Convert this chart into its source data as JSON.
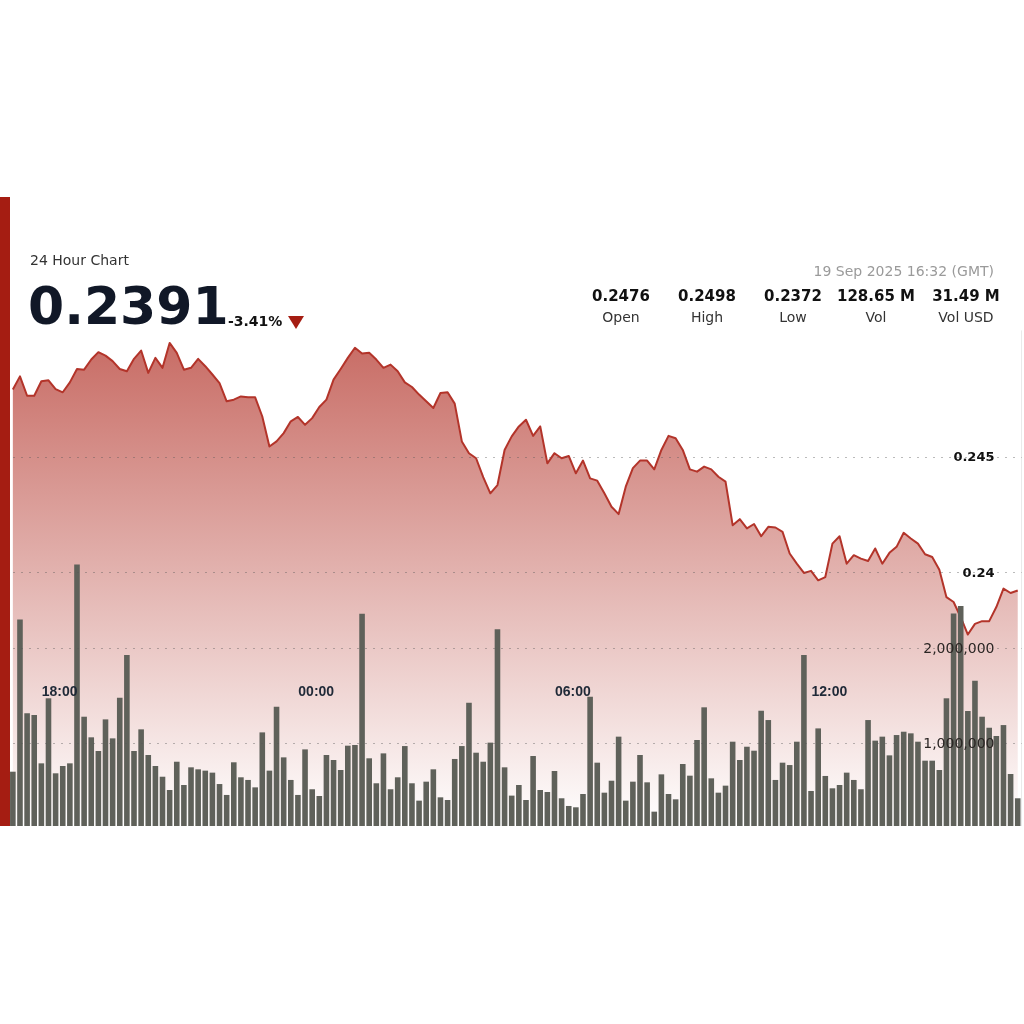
{
  "chart_data": {
    "type": "area",
    "subtitle": "24 Hour Chart",
    "annotations": [
      "0.2391",
      "-3.41%",
      "19 Sep 2025 16:32 (GMT)",
      "0.2476",
      "Open",
      "0.2498",
      "High",
      "0.2372",
      "Low",
      "128.65 M",
      "Vol",
      "31.49 M",
      "Vol USD"
    ],
    "x": [
      "2025-09-18T16:55",
      "2025-09-18T17:05",
      "2025-09-18T17:15",
      "2025-09-18T17:25",
      "2025-09-18T17:35",
      "2025-09-18T17:45",
      "2025-09-18T17:55",
      "2025-09-18T18:05",
      "2025-09-18T18:15",
      "2025-09-18T18:25",
      "2025-09-18T18:35",
      "2025-09-18T18:45",
      "2025-09-18T18:55",
      "2025-09-18T19:05",
      "2025-09-18T19:15",
      "2025-09-18T19:25",
      "2025-09-18T19:35",
      "2025-09-18T19:45",
      "2025-09-18T19:55",
      "2025-09-18T20:05",
      "2025-09-18T20:15",
      "2025-09-18T20:25",
      "2025-09-18T20:35",
      "2025-09-18T20:45",
      "2025-09-18T20:55",
      "2025-09-18T21:05",
      "2025-09-18T21:15",
      "2025-09-18T21:25",
      "2025-09-18T21:35",
      "2025-09-18T21:45",
      "2025-09-18T21:55",
      "2025-09-18T22:05",
      "2025-09-18T22:15",
      "2025-09-18T22:25",
      "2025-09-18T22:35",
      "2025-09-18T22:45",
      "2025-09-18T22:55",
      "2025-09-18T23:05",
      "2025-09-18T23:15",
      "2025-09-18T23:25",
      "2025-09-18T23:35",
      "2025-09-18T23:45",
      "2025-09-18T23:55",
      "2025-09-19T00:05",
      "2025-09-19T00:15",
      "2025-09-19T00:25",
      "2025-09-19T00:35",
      "2025-09-19T00:45",
      "2025-09-19T00:55",
      "2025-09-19T01:05",
      "2025-09-19T01:15",
      "2025-09-19T01:25",
      "2025-09-19T01:35",
      "2025-09-19T01:45",
      "2025-09-19T01:55",
      "2025-09-19T02:05",
      "2025-09-19T02:15",
      "2025-09-19T02:25",
      "2025-09-19T02:35",
      "2025-09-19T02:45",
      "2025-09-19T02:55",
      "2025-09-19T03:05",
      "2025-09-19T03:15",
      "2025-09-19T03:25",
      "2025-09-19T03:35",
      "2025-09-19T03:45",
      "2025-09-19T03:55",
      "2025-09-19T04:05",
      "2025-09-19T04:15",
      "2025-09-19T04:25",
      "2025-09-19T04:35",
      "2025-09-19T04:45",
      "2025-09-19T04:55",
      "2025-09-19T05:05",
      "2025-09-19T05:15",
      "2025-09-19T05:25",
      "2025-09-19T05:35",
      "2025-09-19T05:45",
      "2025-09-19T05:55",
      "2025-09-19T06:05",
      "2025-09-19T06:15",
      "2025-09-19T06:25",
      "2025-09-19T06:35",
      "2025-09-19T06:45",
      "2025-09-19T06:55",
      "2025-09-19T07:05",
      "2025-09-19T07:15",
      "2025-09-19T07:25",
      "2025-09-19T07:35",
      "2025-09-19T07:45",
      "2025-09-19T07:55",
      "2025-09-19T08:05",
      "2025-09-19T08:15",
      "2025-09-19T08:25",
      "2025-09-19T08:35",
      "2025-09-19T08:45",
      "2025-09-19T08:55",
      "2025-09-19T09:05",
      "2025-09-19T09:15",
      "2025-09-19T09:25",
      "2025-09-19T09:35",
      "2025-09-19T09:45",
      "2025-09-19T09:55",
      "2025-09-19T10:05",
      "2025-09-19T10:15",
      "2025-09-19T10:25",
      "2025-09-19T10:35",
      "2025-09-19T10:45",
      "2025-09-19T10:55",
      "2025-09-19T11:05",
      "2025-09-19T11:15",
      "2025-09-19T11:25",
      "2025-09-19T11:35",
      "2025-09-19T11:45",
      "2025-09-19T11:55",
      "2025-09-19T12:05",
      "2025-09-19T12:15",
      "2025-09-19T12:25",
      "2025-09-19T12:35",
      "2025-09-19T12:45",
      "2025-09-19T12:55",
      "2025-09-19T13:05",
      "2025-09-19T13:15",
      "2025-09-19T13:25",
      "2025-09-19T13:35",
      "2025-09-19T13:45",
      "2025-09-19T13:55",
      "2025-09-19T14:05",
      "2025-09-19T14:15",
      "2025-09-19T14:25",
      "2025-09-19T14:35",
      "2025-09-19T14:45",
      "2025-09-19T14:55",
      "2025-09-19T15:05",
      "2025-09-19T15:15",
      "2025-09-19T15:25",
      "2025-09-19T15:35",
      "2025-09-19T15:45",
      "2025-09-19T15:55",
      "2025-09-19T16:05",
      "2025-09-19T16:15",
      "2025-09-19T16:25"
    ],
    "series": [
      {
        "color": "#b3342a",
        "values": [
          0.24792,
          0.24849,
          0.24765,
          0.24765,
          0.24828,
          0.24832,
          0.24794,
          0.2478,
          0.24823,
          0.24881,
          0.24878,
          0.24922,
          0.24954,
          0.24939,
          0.24915,
          0.24881,
          0.24871,
          0.24925,
          0.24961,
          0.24864,
          0.24929,
          0.24886,
          0.24994,
          0.24951,
          0.24878,
          0.24886,
          0.24925,
          0.24893,
          0.24857,
          0.2482,
          0.24741,
          0.24748,
          0.24762,
          0.24758,
          0.24758,
          0.24675,
          0.24545,
          0.24567,
          0.24603,
          0.24654,
          0.24673,
          0.24639,
          0.24668,
          0.24716,
          0.24748,
          0.24835,
          0.24881,
          0.24929,
          0.24973,
          0.24948,
          0.24951,
          0.24922,
          0.24886,
          0.249,
          0.24871,
          0.24823,
          0.24803,
          0.2477,
          0.24741,
          0.24712,
          0.24777,
          0.2478,
          0.24731,
          0.24567,
          0.24516,
          0.24494,
          0.24412,
          0.24342,
          0.24378,
          0.2453,
          0.24589,
          0.24632,
          0.24661,
          0.24591,
          0.24632,
          0.24472,
          0.24516,
          0.24494,
          0.24504,
          0.24429,
          0.24484,
          0.24407,
          0.24397,
          0.24342,
          0.24284,
          0.24252,
          0.24371,
          0.24451,
          0.24484,
          0.24484,
          0.24446,
          0.2453,
          0.24591,
          0.24581,
          0.2453,
          0.24446,
          0.24436,
          0.24458,
          0.24446,
          0.24414,
          0.24393,
          0.24204,
          0.2423,
          0.2419,
          0.24209,
          0.24156,
          0.24197,
          0.24194,
          0.24175,
          0.24081,
          0.24037,
          0.23997,
          0.24006,
          0.23965,
          0.23979,
          0.24124,
          0.24156,
          0.24037,
          0.24074,
          0.24059,
          0.24049,
          0.24103,
          0.24037,
          0.24084,
          0.2411,
          0.24171,
          0.24146,
          0.24124,
          0.24078,
          0.24066,
          0.24011,
          0.23892,
          0.23871,
          0.23805,
          0.2373,
          0.23776,
          0.23788,
          0.23788,
          0.23849,
          0.23929,
          0.2391,
          0.23921
        ]
      },
      {
        "type": "bar",
        "axis": "y2",
        "color": "#5f615a",
        "values": [
          698000,
          2302000,
          1313000,
          1295000,
          786000,
          1471000,
          681000,
          758000,
          786000,
          2881000,
          1277000,
          1060000,
          916000,
          1249000,
          1049000,
          1477000,
          1926000,
          916000,
          1144000,
          874000,
          758000,
          645000,
          505000,
          803000,
          558000,
          744000,
          723000,
          709000,
          688000,
          568000,
          453000,
          797000,
          639000,
          611000,
          533000,
          1112000,
          709000,
          1382000,
          849000,
          611000,
          453000,
          933000,
          513000,
          442000,
          874000,
          821000,
          716000,
          972000,
          979000,
          2361000,
          839000,
          576000,
          891000,
          513000,
          639000,
          968000,
          576000,
          393000,
          593000,
          723000,
          428000,
          400000,
          832000,
          968000,
          1424000,
          898000,
          803000,
          1004000,
          2197000,
          744000,
          446000,
          558000,
          400000,
          863000,
          505000,
          484000,
          705000,
          418000,
          337000,
          323000,
          463000,
          1488000,
          793000,
          477000,
          603000,
          1067000,
          393000,
          593000,
          874000,
          586000,
          277000,
          670000,
          463000,
          407000,
          779000,
          656000,
          1032000,
          1376000,
          628000,
          477000,
          551000,
          1014000,
          821000,
          961000,
          919000,
          1340000,
          1242000,
          611000,
          793000,
          768000,
          1014000,
          1926000,
          495000,
          1154000,
          653000,
          523000,
          558000,
          688000,
          611000,
          513000,
          1242000,
          1025000,
          1067000,
          870000,
          1084000,
          1119000,
          1102000,
          1014000,
          814000,
          814000,
          716000,
          1471000,
          2365000,
          2442000,
          1337000,
          1656000,
          1277000,
          1161000,
          1074000,
          1189000,
          674000,
          418000
        ]
      }
    ],
    "xlim": [
      "2025-09-18T16:51",
      "2025-09-19T16:31"
    ],
    "xticks": [
      {
        "value": "2025-09-18T18:00",
        "label": "18:00"
      },
      {
        "value": "2025-09-19T00:00",
        "label": "00:00"
      },
      {
        "value": "2025-09-19T06:00",
        "label": "06:00"
      },
      {
        "value": "2025-09-19T12:00",
        "label": "12:00"
      }
    ],
    "ylim": [
      0.229,
      0.2505
    ],
    "yticks": [
      0.24,
      0.245
    ],
    "y2lim": [
      126000,
      5350000
    ],
    "y2ticks": [
      {
        "value": 1000000,
        "label": "1,000,000"
      },
      {
        "value": 2000000,
        "label": "2,000,000"
      }
    ],
    "grid": "y"
  }
}
